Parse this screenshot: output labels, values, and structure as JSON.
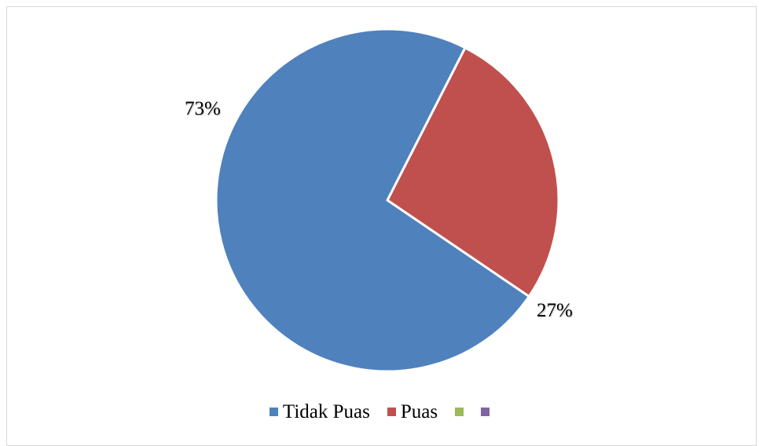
{
  "chart_data": {
    "type": "pie",
    "title": "",
    "slices": [
      {
        "name": "Tidak Puas",
        "value": 73,
        "label": "73%",
        "color": "#4F81BD"
      },
      {
        "name": "Puas",
        "value": 27,
        "label": "27%",
        "color": "#C0504D"
      }
    ],
    "legend": {
      "placement": "bottom",
      "entries": [
        {
          "name": "Tidak Puas",
          "color": "#4F81BD"
        },
        {
          "name": "Puas",
          "color": "#C0504D"
        },
        {
          "name": "",
          "color": "#9BBB59"
        },
        {
          "name": "",
          "color": "#8064A2"
        }
      ]
    }
  }
}
